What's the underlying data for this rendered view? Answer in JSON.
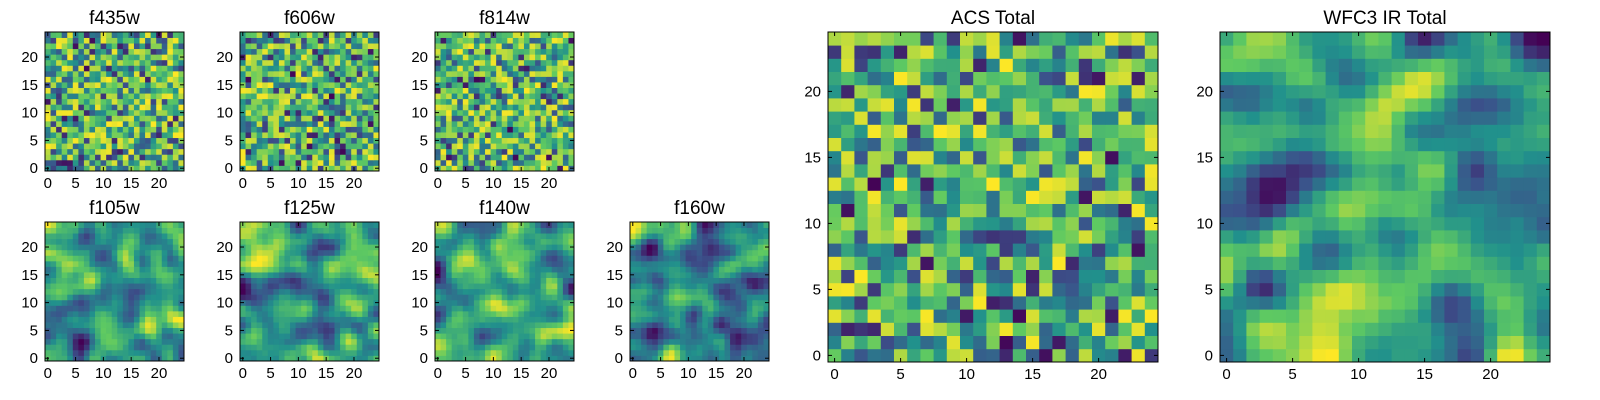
{
  "figure": {
    "colormap": [
      "#440154",
      "#3b528b",
      "#21918c",
      "#5ec962",
      "#fde725"
    ]
  },
  "chart_data": [
    {
      "type": "heatmap",
      "title": "f435w",
      "grid_size": 25,
      "xlim": [
        0,
        24
      ],
      "ylim": [
        0,
        24
      ],
      "xticks": [
        0,
        5,
        10,
        15,
        20
      ],
      "yticks": [
        0,
        5,
        10,
        15,
        20
      ],
      "texture": "fine pixel noise",
      "value_range": [
        0,
        1
      ]
    },
    {
      "type": "heatmap",
      "title": "f606w",
      "grid_size": 25,
      "xlim": [
        0,
        24
      ],
      "ylim": [
        0,
        24
      ],
      "xticks": [
        0,
        5,
        10,
        15,
        20
      ],
      "yticks": [
        0,
        5,
        10,
        15,
        20
      ],
      "texture": "fine pixel noise",
      "value_range": [
        0,
        1
      ]
    },
    {
      "type": "heatmap",
      "title": "f814w",
      "grid_size": 25,
      "xlim": [
        0,
        24
      ],
      "ylim": [
        0,
        24
      ],
      "xticks": [
        0,
        5,
        10,
        15,
        20
      ],
      "yticks": [
        0,
        5,
        10,
        15,
        20
      ],
      "texture": "fine pixel noise",
      "value_range": [
        0,
        1
      ]
    },
    {
      "type": "heatmap",
      "title": "f105w",
      "grid_size": 25,
      "xlim": [
        0,
        24
      ],
      "ylim": [
        0,
        24
      ],
      "xticks": [
        0,
        5,
        10,
        15,
        20
      ],
      "yticks": [
        0,
        5,
        10,
        15,
        20
      ],
      "texture": "smoothed noise",
      "value_range": [
        0,
        1
      ]
    },
    {
      "type": "heatmap",
      "title": "f125w",
      "grid_size": 25,
      "xlim": [
        0,
        24
      ],
      "ylim": [
        0,
        24
      ],
      "xticks": [
        0,
        5,
        10,
        15,
        20
      ],
      "yticks": [
        0,
        5,
        10,
        15,
        20
      ],
      "texture": "smoothed noise",
      "value_range": [
        0,
        1
      ]
    },
    {
      "type": "heatmap",
      "title": "f140w",
      "grid_size": 25,
      "xlim": [
        0,
        24
      ],
      "ylim": [
        0,
        24
      ],
      "xticks": [
        0,
        5,
        10,
        15,
        20
      ],
      "yticks": [
        0,
        5,
        10,
        15,
        20
      ],
      "texture": "smoothed noise",
      "value_range": [
        0,
        1
      ]
    },
    {
      "type": "heatmap",
      "title": "f160w",
      "grid_size": 25,
      "xlim": [
        0,
        24
      ],
      "ylim": [
        0,
        24
      ],
      "xticks": [
        0,
        5,
        10,
        15,
        20
      ],
      "yticks": [
        0,
        5,
        10,
        15,
        20
      ],
      "texture": "smoothed noise",
      "value_range": [
        0,
        1
      ]
    },
    {
      "type": "heatmap",
      "title": "ACS Total",
      "grid_size": 25,
      "xlim": [
        0,
        24
      ],
      "ylim": [
        0,
        24
      ],
      "xticks": [
        0,
        5,
        10,
        15,
        20
      ],
      "yticks": [
        0,
        5,
        10,
        15,
        20
      ],
      "texture": "fine pixel noise",
      "value_range": [
        0,
        1
      ]
    },
    {
      "type": "heatmap",
      "title": "WFC3 IR Total",
      "grid_size": 25,
      "xlim": [
        0,
        24
      ],
      "ylim": [
        0,
        24
      ],
      "xticks": [
        0,
        5,
        10,
        15,
        20
      ],
      "yticks": [
        0,
        5,
        10,
        15,
        20
      ],
      "texture": "smoothed noise",
      "value_range": [
        0,
        1
      ]
    }
  ]
}
